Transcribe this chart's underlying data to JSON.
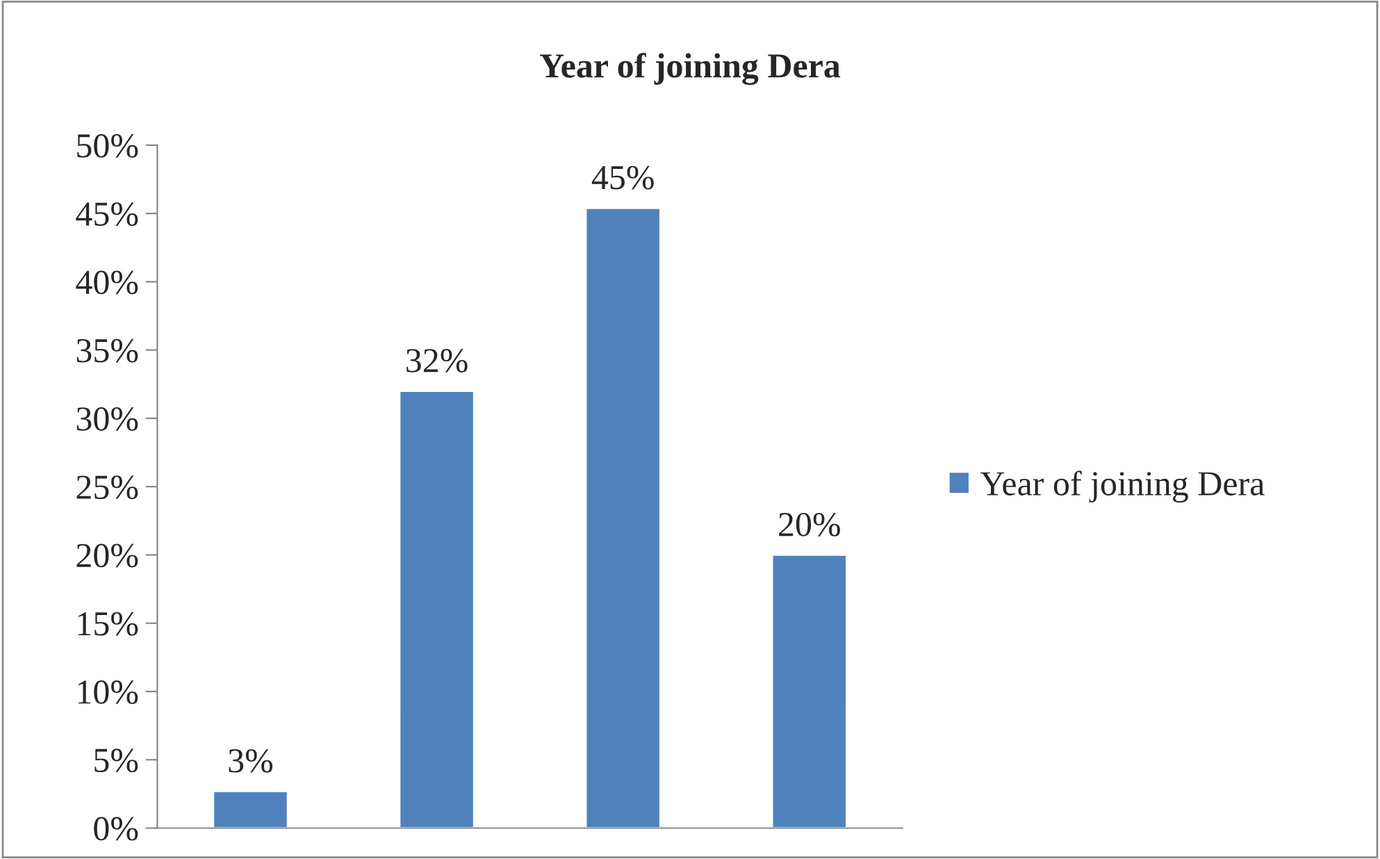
{
  "chart_data": {
    "type": "bar",
    "title": "Year of joining Dera",
    "categories": [
      null,
      null,
      null,
      null
    ],
    "series": [
      {
        "name": "Year of joining Dera",
        "color": "#4f81bd",
        "values": [
          2.7,
          32,
          45.4,
          20
        ],
        "value_labels": [
          "3%",
          "32%",
          "45%",
          "20%"
        ]
      }
    ],
    "ylim": [
      0,
      50
    ],
    "yticks": [
      {
        "value": 0,
        "label": "0%"
      },
      {
        "value": 5,
        "label": "5%"
      },
      {
        "value": 10,
        "label": "10%"
      },
      {
        "value": 15,
        "label": "15%"
      },
      {
        "value": 20,
        "label": "20%"
      },
      {
        "value": 25,
        "label": "25%"
      },
      {
        "value": 30,
        "label": "30%"
      },
      {
        "value": 35,
        "label": "35%"
      },
      {
        "value": 40,
        "label": "40%"
      },
      {
        "value": 45,
        "label": "45%"
      },
      {
        "value": 50,
        "label": "50%"
      }
    ],
    "legend": "right",
    "grid": false
  }
}
